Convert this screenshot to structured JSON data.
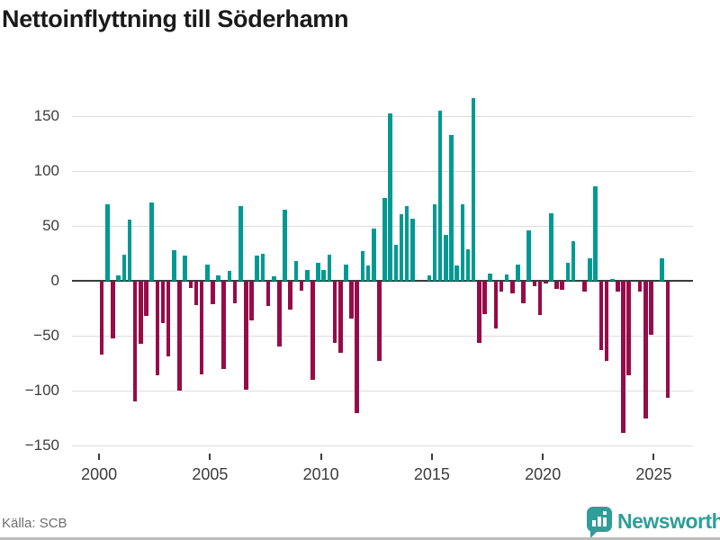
{
  "title": "Nettoinflyttning till Söderhamn",
  "source": "Källa: SCB",
  "brand": {
    "name": "Newsworthy",
    "color": "#2f9e98"
  },
  "colors": {
    "positive": "#009a93",
    "negative": "#970b49",
    "grid": "#dddddd",
    "zero_axis": "#3b3b3b",
    "tick_text": "#3c3c3c",
    "muted_text": "#6f6f6f"
  },
  "chart_data": {
    "type": "bar",
    "title": "Nettoinflyttning till Söderhamn",
    "frequency": "quarterly",
    "start_quarter": "2000Q1",
    "end_quarter": "2025Q3",
    "xlabel": "",
    "ylabel": "",
    "grid": true,
    "ylim": [
      -160,
      178
    ],
    "y_ticks": [
      {
        "value": 150,
        "label": "150"
      },
      {
        "value": 100,
        "label": "100"
      },
      {
        "value": 50,
        "label": "50"
      },
      {
        "value": 0,
        "label": "0"
      },
      {
        "value": -50,
        "label": "−50"
      },
      {
        "value": -100,
        "label": "−100"
      },
      {
        "value": -150,
        "label": "−150"
      }
    ],
    "x_tick_labels": [
      "2000",
      "2005",
      "2010",
      "2015",
      "2020",
      "2025"
    ],
    "values": [
      -67,
      70,
      -52,
      5,
      24,
      56,
      -110,
      -57,
      -32,
      72,
      -86,
      -38,
      -69,
      28,
      -100,
      23,
      -6,
      -22,
      -85,
      15,
      -21,
      5,
      -80,
      9,
      -20,
      68,
      -99,
      -36,
      23,
      25,
      -23,
      4,
      -60,
      65,
      -26,
      18,
      -9,
      10,
      -90,
      17,
      10,
      24,
      -56,
      -65,
      15,
      -34,
      -120,
      27,
      14,
      48,
      -73,
      76,
      153,
      33,
      61,
      68,
      57,
      0,
      0,
      5,
      70,
      155,
      42,
      133,
      14,
      70,
      29,
      167,
      -56,
      -30,
      7,
      -43,
      -10,
      6,
      -11,
      15,
      -20,
      46,
      -5,
      -31,
      -2,
      62,
      -7,
      -8,
      17,
      36,
      0,
      -10,
      21,
      86,
      -63,
      -73,
      2,
      -10,
      -138,
      -86,
      0,
      -10,
      -125,
      -49,
      0,
      21,
      -106
    ]
  }
}
